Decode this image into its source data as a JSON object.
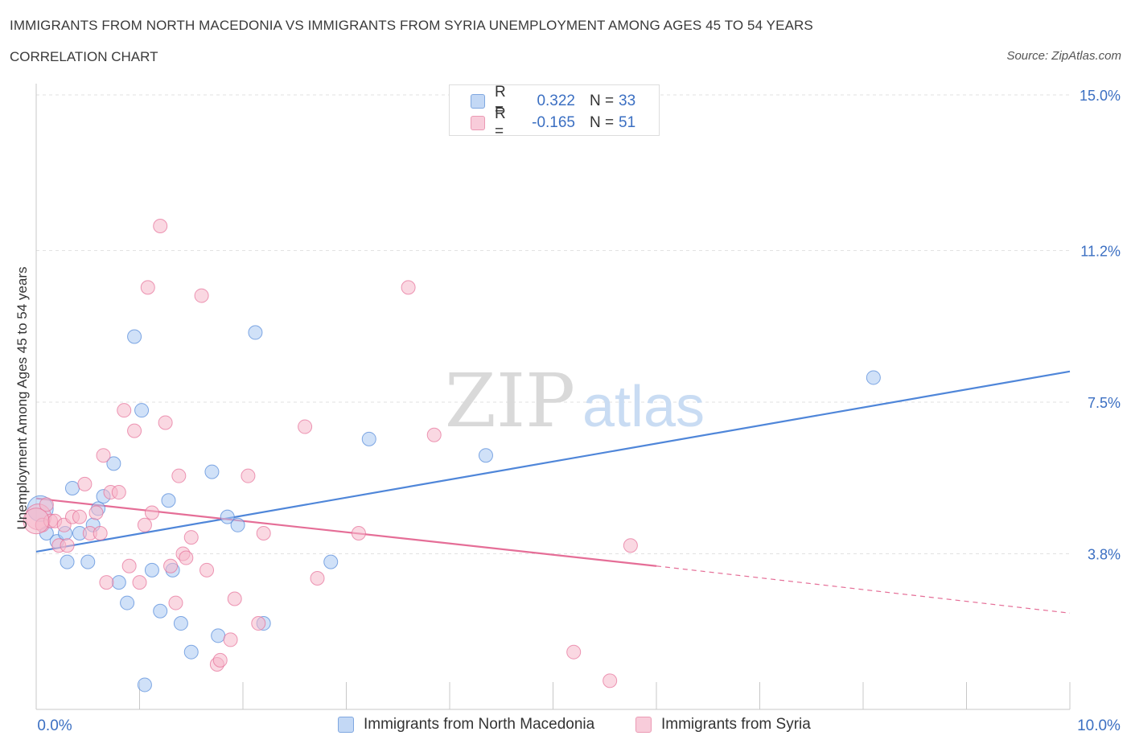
{
  "title": "IMMIGRANTS FROM NORTH MACEDONIA VS IMMIGRANTS FROM SYRIA UNEMPLOYMENT AMONG AGES 45 TO 54 YEARS",
  "subtitle": "CORRELATION CHART",
  "source": "Source: ZipAtlas.com",
  "watermark": {
    "zip": "ZIP",
    "atlas": "atlas"
  },
  "legend": {
    "r_label": "R =",
    "n_label": "N =",
    "rows": [
      {
        "series": "Immigrants from North Macedonia",
        "r": "0.322",
        "n": "33",
        "color": "#a9c8f2"
      },
      {
        "series": "Immigrants from Syria",
        "r": "-0.165",
        "n": "51",
        "color": "#f5b8cb"
      }
    ]
  },
  "chart_data": {
    "type": "scatter",
    "title": "IMMIGRANTS FROM NORTH MACEDONIA VS IMMIGRANTS FROM SYRIA UNEMPLOYMENT AMONG AGES 45 TO 54 YEARS",
    "xlabel": "",
    "ylabel": "Unemployment Among Ages 45 to 54 years",
    "xlim": [
      0,
      10
    ],
    "ylim": [
      0,
      15
    ],
    "x_tick_labels": [
      "0.0%",
      "10.0%"
    ],
    "y_ticks": [
      3.8,
      7.5,
      11.2,
      15.0
    ],
    "y_tick_labels": [
      "3.8%",
      "7.5%",
      "11.2%",
      "15.0%"
    ],
    "grid": true,
    "legend_position": "top-center",
    "series": [
      {
        "name": "Immigrants from North Macedonia",
        "color": "#4f86d9",
        "fill": "#a9c8f2",
        "points": [
          [
            0.04,
            4.9
          ],
          [
            0.1,
            4.3
          ],
          [
            0.2,
            4.1
          ],
          [
            0.28,
            4.3
          ],
          [
            0.3,
            3.6
          ],
          [
            0.35,
            5.4
          ],
          [
            0.42,
            4.3
          ],
          [
            0.5,
            3.6
          ],
          [
            0.55,
            4.5
          ],
          [
            0.6,
            4.9
          ],
          [
            0.65,
            5.2
          ],
          [
            0.75,
            6.0
          ],
          [
            0.8,
            3.1
          ],
          [
            0.88,
            2.6
          ],
          [
            0.95,
            9.1
          ],
          [
            1.02,
            7.3
          ],
          [
            1.05,
            0.6
          ],
          [
            1.12,
            3.4
          ],
          [
            1.2,
            2.4
          ],
          [
            1.28,
            5.1
          ],
          [
            1.32,
            3.4
          ],
          [
            1.4,
            2.1
          ],
          [
            1.5,
            1.4
          ],
          [
            1.7,
            5.8
          ],
          [
            1.76,
            1.8
          ],
          [
            1.85,
            4.7
          ],
          [
            1.95,
            4.5
          ],
          [
            2.12,
            9.2
          ],
          [
            2.2,
            2.1
          ],
          [
            2.85,
            3.6
          ],
          [
            3.22,
            6.6
          ],
          [
            4.35,
            6.2
          ],
          [
            8.1,
            8.1
          ]
        ],
        "trend": {
          "x": [
            0,
            10
          ],
          "y": [
            3.85,
            8.25
          ],
          "style": "solid"
        }
      },
      {
        "name": "Immigrants from Syria",
        "color": "#e56e97",
        "fill": "#f5b8cb",
        "points": [
          [
            0.02,
            4.7
          ],
          [
            0.06,
            4.5
          ],
          [
            0.1,
            5.0
          ],
          [
            0.14,
            4.6
          ],
          [
            0.18,
            4.6
          ],
          [
            0.22,
            4.0
          ],
          [
            0.27,
            4.5
          ],
          [
            0.3,
            4.0
          ],
          [
            0.35,
            4.7
          ],
          [
            0.42,
            4.7
          ],
          [
            0.47,
            5.5
          ],
          [
            0.52,
            4.3
          ],
          [
            0.58,
            4.8
          ],
          [
            0.62,
            4.3
          ],
          [
            0.65,
            6.2
          ],
          [
            0.68,
            3.1
          ],
          [
            0.72,
            5.3
          ],
          [
            0.8,
            5.3
          ],
          [
            0.85,
            7.3
          ],
          [
            0.9,
            3.5
          ],
          [
            0.95,
            6.8
          ],
          [
            1.0,
            3.1
          ],
          [
            1.05,
            4.5
          ],
          [
            1.08,
            10.3
          ],
          [
            1.12,
            4.8
          ],
          [
            1.2,
            11.8
          ],
          [
            1.25,
            7.0
          ],
          [
            1.3,
            3.5
          ],
          [
            1.35,
            2.6
          ],
          [
            1.38,
            5.7
          ],
          [
            1.42,
            3.8
          ],
          [
            1.45,
            3.7
          ],
          [
            1.5,
            4.2
          ],
          [
            1.6,
            10.1
          ],
          [
            1.65,
            3.4
          ],
          [
            1.75,
            1.1
          ],
          [
            1.78,
            1.2
          ],
          [
            1.88,
            1.7
          ],
          [
            1.92,
            2.7
          ],
          [
            2.05,
            5.7
          ],
          [
            2.15,
            2.1
          ],
          [
            2.2,
            4.3
          ],
          [
            2.6,
            6.9
          ],
          [
            2.72,
            3.2
          ],
          [
            3.12,
            4.3
          ],
          [
            3.6,
            10.3
          ],
          [
            3.85,
            6.7
          ],
          [
            5.2,
            1.4
          ],
          [
            5.55,
            0.7
          ],
          [
            5.75,
            4.0
          ],
          [
            0.0,
            4.6
          ]
        ],
        "trend": {
          "x": [
            0,
            6.0,
            10
          ],
          "y": [
            5.15,
            3.5,
            2.35
          ],
          "style": "solid-then-dashed"
        }
      }
    ]
  }
}
